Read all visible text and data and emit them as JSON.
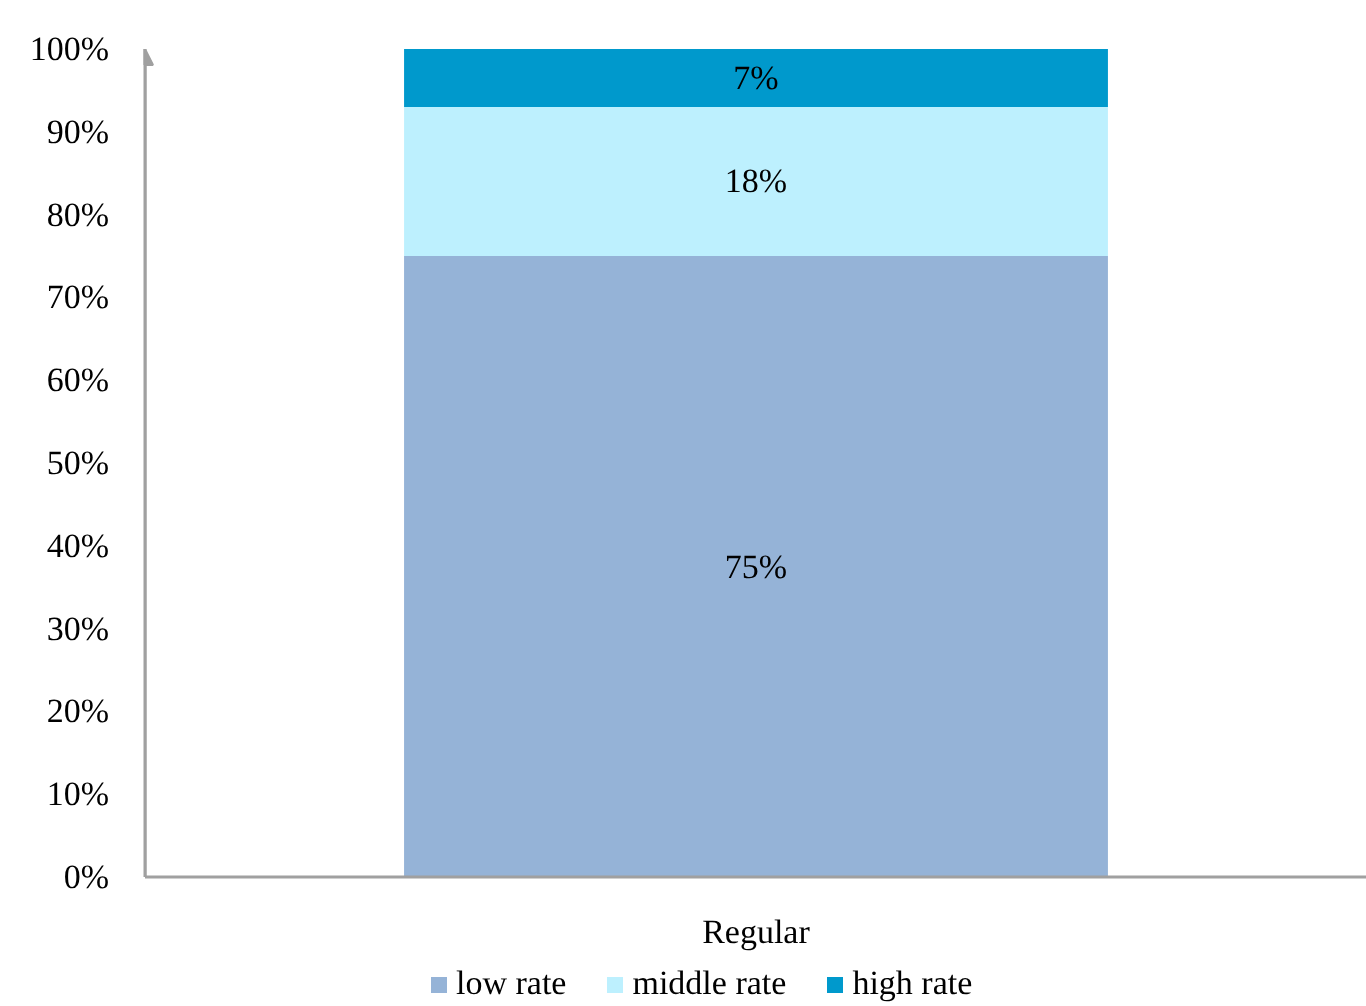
{
  "chart_data": {
    "type": "bar",
    "stacked": true,
    "categories": [
      "Regular"
    ],
    "series": [
      {
        "name": "low rate",
        "color": "#95b3d7",
        "values": [
          75
        ],
        "value_labels": [
          "75%"
        ]
      },
      {
        "name": "middle rate",
        "color": "#bdf0fe",
        "values": [
          18
        ],
        "value_labels": [
          "18%"
        ]
      },
      {
        "name": "high rate",
        "color": "#0099cc",
        "values": [
          7
        ],
        "value_labels": [
          "7%"
        ]
      }
    ],
    "ylim": [
      0,
      100
    ],
    "yticks": [
      {
        "value": 0,
        "label": "0%"
      },
      {
        "value": 10,
        "label": "10%"
      },
      {
        "value": 20,
        "label": "20%"
      },
      {
        "value": 30,
        "label": "30%"
      },
      {
        "value": 40,
        "label": "40%"
      },
      {
        "value": 50,
        "label": "50%"
      },
      {
        "value": 60,
        "label": "60%"
      },
      {
        "value": 70,
        "label": "70%"
      },
      {
        "value": 80,
        "label": "80%"
      },
      {
        "value": 90,
        "label": "90%"
      },
      {
        "value": 100,
        "label": "100%"
      }
    ],
    "legend": "bottom"
  }
}
